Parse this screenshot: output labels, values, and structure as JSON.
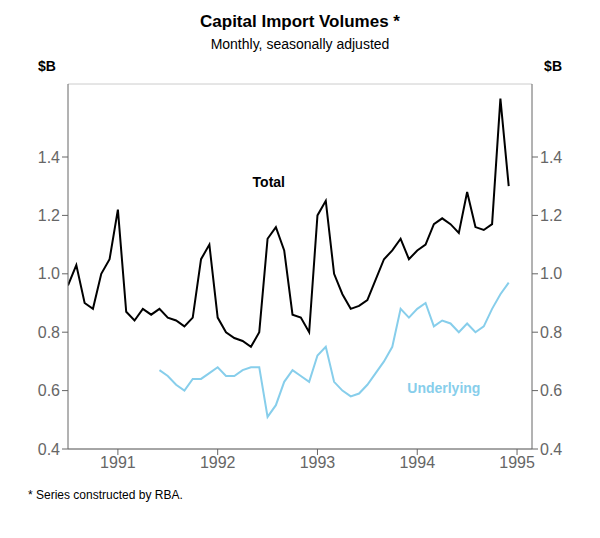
{
  "chart_data": {
    "type": "line",
    "title": "Capital Import Volumes *",
    "subtitle": "Monthly, seasonally adjusted",
    "footnote": "* Series constructed by RBA.",
    "ylabel": "$B",
    "y2label": "$B",
    "x": [
      1990.5,
      1990.5833333333333,
      1990.6666666666667,
      1990.75,
      1990.8333333333333,
      1990.9166666666667,
      1991,
      1991.0833333333333,
      1991.1666666666667,
      1991.25,
      1991.3333333333333,
      1991.4166666666667,
      1991.5,
      1991.5833333333333,
      1991.6666666666667,
      1991.75,
      1991.8333333333333,
      1991.9166666666667,
      1992,
      1992.0833333333333,
      1992.1666666666667,
      1992.25,
      1992.3333333333333,
      1992.4166666666667,
      1992.5,
      1992.5833333333333,
      1992.6666666666667,
      1992.75,
      1992.8333333333333,
      1992.9166666666667,
      1993,
      1993.0833333333333,
      1993.1666666666667,
      1993.25,
      1993.3333333333333,
      1993.4166666666667,
      1993.5,
      1993.5833333333333,
      1993.6666666666667,
      1993.75,
      1993.8333333333333,
      1993.9166666666667,
      1994,
      1994.0833333333333,
      1994.1666666666667,
      1994.25,
      1994.3333333333333,
      1994.4166666666667,
      1994.5,
      1994.5833333333333,
      1994.6666666666667,
      1994.75,
      1994.8333333333333,
      1994.9166666666667
    ],
    "series": [
      {
        "name": "Total",
        "color": "#000000",
        "values": [
          0.96,
          1.03,
          0.9,
          0.88,
          1.0,
          1.05,
          1.22,
          0.87,
          0.84,
          0.88,
          0.86,
          0.88,
          0.85,
          0.84,
          0.82,
          0.85,
          1.05,
          1.1,
          0.85,
          0.8,
          0.78,
          0.77,
          0.75,
          0.8,
          1.12,
          1.16,
          1.08,
          0.86,
          0.85,
          0.8,
          1.2,
          1.25,
          1.0,
          0.93,
          0.88,
          0.89,
          0.91,
          0.98,
          1.05,
          1.08,
          1.12,
          1.05,
          1.08,
          1.1,
          1.17,
          1.19,
          1.17,
          1.14,
          1.28,
          1.16,
          1.15,
          1.17,
          1.6,
          1.3
        ]
      },
      {
        "name": "Underlying",
        "color": "#87CEEB",
        "values": [
          null,
          null,
          null,
          null,
          null,
          null,
          null,
          null,
          null,
          null,
          null,
          0.67,
          0.65,
          0.62,
          0.6,
          0.64,
          0.64,
          0.66,
          0.68,
          0.65,
          0.65,
          0.67,
          0.68,
          0.68,
          0.51,
          0.55,
          0.63,
          0.67,
          0.65,
          0.63,
          0.72,
          0.75,
          0.63,
          0.6,
          0.58,
          0.59,
          0.62,
          0.66,
          0.7,
          0.75,
          0.88,
          0.85,
          0.88,
          0.9,
          0.82,
          0.84,
          0.83,
          0.8,
          0.83,
          0.8,
          0.82,
          0.88,
          0.93,
          0.97
        ]
      }
    ],
    "annotations": [
      {
        "text": "Total",
        "x": 1992.35,
        "y": 1.29
      },
      {
        "text": "Underlying",
        "x": 1993.9,
        "y": 0.635
      }
    ],
    "xlim": [
      1990.5,
      1995.15
    ],
    "xticks": [
      1991,
      1992,
      1993,
      1994,
      1995
    ],
    "ylim": [
      0.4,
      1.65
    ],
    "yticks": [
      0.4,
      0.6,
      0.8,
      {
        "value": 1.0,
        "label": "1.0"
      },
      1.2,
      1.4
    ],
    "y2lim": [
      0.4,
      1.65
    ],
    "y2ticks": [
      0.4,
      0.6,
      0.8,
      {
        "value": 1.0,
        "label": "1.0"
      },
      1.2,
      1.4
    ],
    "grid": true
  }
}
